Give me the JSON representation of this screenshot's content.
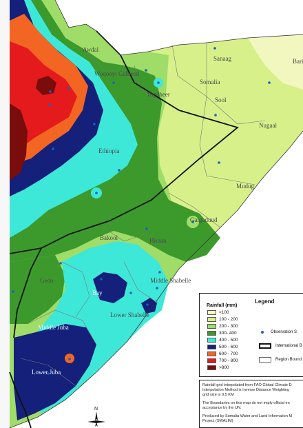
{
  "map_labels": {
    "awdal": "Awdal",
    "woqooyi_galbeed": "Woqooyi Galbeed",
    "togdheer": "Togdheer",
    "sanaag": "Sanaag",
    "bari": "Bari",
    "sool": "Sool",
    "somalia": "Somalia",
    "nugaal": "Nugaal",
    "ethiopia": "Ethiopia",
    "mudug": "Mudug",
    "galgaduud": "Galgaduud",
    "hiraan": "Hiraan",
    "bakool": "Bakool",
    "gedo": "Gedo",
    "bay": "Bay",
    "middle_shabelle": "Middle Shabelle",
    "lower_shabelle": "Lower Shabelle",
    "middle_juba": "Middle Juba",
    "lower_juba": "Lower Juba"
  },
  "legend": {
    "title": "Legend",
    "rainfall_title": "Rainfall (mm)",
    "classes": [
      {
        "label": "<100",
        "color": "#f2f7bf"
      },
      {
        "label": "100 - 200",
        "color": "#d7f08a"
      },
      {
        "label": "200 - 300",
        "color": "#9fdc68"
      },
      {
        "label": "300- 400",
        "color": "#3c9a2c"
      },
      {
        "label": "400 - 500",
        "color": "#3ee8d8"
      },
      {
        "label": "500 - 600",
        "color": "#14207a"
      },
      {
        "label": "600 - 700",
        "color": "#f26522"
      },
      {
        "label": "700 - 800",
        "color": "#e41a1c"
      },
      {
        "label": ">800",
        "color": "#7a0c0c"
      }
    ],
    "symbols": {
      "observation": "Observation S",
      "international": "International B",
      "region": "Region Bound"
    }
  },
  "notes": {
    "line1": "Rainfall grid interpolated from FAO Global Climate D",
    "line2": "Interpolation Method is Inverse Distance Weighting",
    "line3": "grid size is 9.5 KM",
    "line4": "The Boundaries on this map do not imply official en",
    "line5": "acceptance by the UN.",
    "line6": "Produced by Somalia Water and Land Information M",
    "line7": "Project (SWALIM)"
  },
  "north_arrow": {
    "label": "N",
    "icon": "north-arrow-icon"
  }
}
